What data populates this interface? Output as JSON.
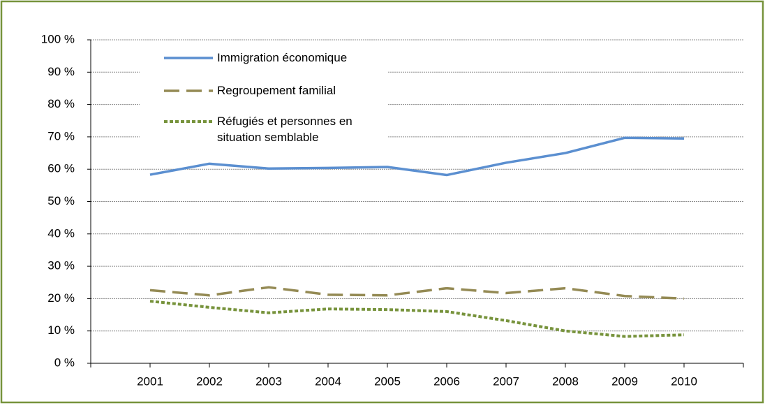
{
  "chart_data": {
    "type": "line",
    "categories": [
      "2001",
      "2002",
      "2003",
      "2004",
      "2005",
      "2006",
      "2007",
      "2008",
      "2009",
      "2010"
    ],
    "series": [
      {
        "name": "Immigration économique",
        "color": "#5b8fd0",
        "dash": "solid",
        "values": [
          58.3,
          61.7,
          60.2,
          60.4,
          60.7,
          58.2,
          62.0,
          65.0,
          69.7,
          69.5
        ]
      },
      {
        "name": "Regroupement familial",
        "color": "#948a54",
        "dash": "long",
        "values": [
          22.6,
          21.0,
          23.5,
          21.2,
          21.0,
          23.2,
          21.7,
          23.2,
          20.8,
          20.0
        ]
      },
      {
        "name": "Réfugiés et personnes en situation semblable",
        "color": "#77933c",
        "dash": "dot",
        "values": [
          19.2,
          17.3,
          15.6,
          16.8,
          16.6,
          16.0,
          13.2,
          10.0,
          8.3,
          8.8
        ]
      }
    ],
    "ylim": [
      0,
      100
    ],
    "yticks": [
      {
        "value": 0,
        "label": "0 %"
      },
      {
        "value": 10,
        "label": "10 %"
      },
      {
        "value": 20,
        "label": "20 %"
      },
      {
        "value": 30,
        "label": "30 %"
      },
      {
        "value": 40,
        "label": "40 %"
      },
      {
        "value": 50,
        "label": "50 %"
      },
      {
        "value": 60,
        "label": "60 %"
      },
      {
        "value": 70,
        "label": "70 %"
      },
      {
        "value": 80,
        "label": "80 %"
      },
      {
        "value": 90,
        "label": "90 %"
      },
      {
        "value": 100,
        "label": "100 %"
      }
    ],
    "grid": true,
    "legend": "top-left"
  }
}
